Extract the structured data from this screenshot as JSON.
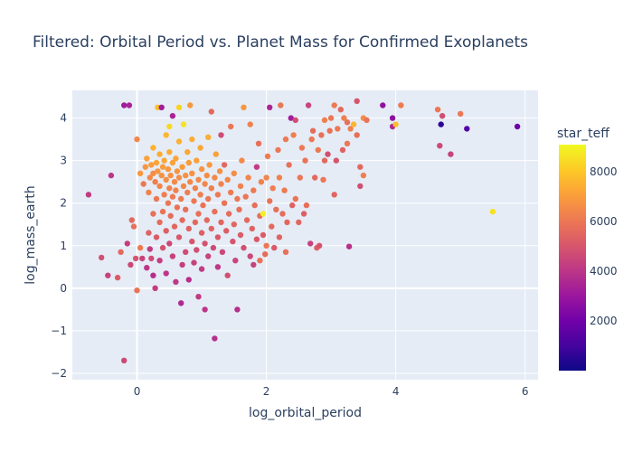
{
  "chart_data": {
    "type": "scatter",
    "title": "Filtered: Orbital Period vs. Planet Mass for Confirmed Exoplanets",
    "xlabel": "log_orbital_period",
    "ylabel": "log_mass_earth",
    "xlim": [
      -1.0,
      6.2
    ],
    "ylim": [
      -2.15,
      4.65
    ],
    "xticks": [
      "0",
      "2",
      "4",
      "6"
    ],
    "xtick_values": [
      0,
      2,
      4,
      6
    ],
    "yticks": [
      "−2",
      "−1",
      "0",
      "1",
      "2",
      "3",
      "4"
    ],
    "ytick_values": [
      -2,
      -1,
      0,
      1,
      2,
      3,
      4
    ],
    "grid": true,
    "colorbar": {
      "title": "star_teff",
      "range": [
        0,
        9100
      ],
      "ticks": [
        "2000",
        "4000",
        "6000",
        "8000"
      ],
      "tick_values": [
        2000,
        4000,
        6000,
        8000
      ],
      "colorscale": [
        "#0d0887",
        "#46039f",
        "#7201a8",
        "#9c179e",
        "#bd3786",
        "#d8576b",
        "#ed7953",
        "#fb9f3a",
        "#fdca26",
        "#f0f921"
      ]
    },
    "points": [
      [
        -0.75,
        2.2,
        4200
      ],
      [
        -0.55,
        0.72,
        4800
      ],
      [
        -0.45,
        0.3,
        4400
      ],
      [
        -0.4,
        2.65,
        4000
      ],
      [
        -0.3,
        0.25,
        5200
      ],
      [
        -0.25,
        0.85,
        5600
      ],
      [
        -0.2,
        4.3,
        3200
      ],
      [
        -0.12,
        4.3,
        3400
      ],
      [
        -0.15,
        1.05,
        4300
      ],
      [
        -0.1,
        0.55,
        4600
      ],
      [
        -0.08,
        1.6,
        5600
      ],
      [
        -0.05,
        1.45,
        5800
      ],
      [
        -0.02,
        0.7,
        5000
      ],
      [
        0.0,
        -0.05,
        5900
      ],
      [
        0.0,
        3.5,
        6500
      ],
      [
        0.05,
        2.7,
        6900
      ],
      [
        0.05,
        0.95,
        6100
      ],
      [
        0.08,
        0.7,
        4400
      ],
      [
        0.1,
        2.45,
        6000
      ],
      [
        -0.2,
        -1.7,
        4600
      ],
      [
        0.13,
        2.85,
        6800
      ],
      [
        0.15,
        3.05,
        7100
      ],
      [
        0.15,
        0.48,
        4000
      ],
      [
        0.18,
        2.25,
        6300
      ],
      [
        0.18,
        1.3,
        5400
      ],
      [
        0.2,
        2.6,
        6500
      ],
      [
        0.2,
        0.92,
        4200
      ],
      [
        0.22,
        2.9,
        7000
      ],
      [
        0.22,
        0.7,
        4700
      ],
      [
        0.25,
        2.7,
        6600
      ],
      [
        0.25,
        3.3,
        7500
      ],
      [
        0.25,
        1.75,
        5800
      ],
      [
        0.25,
        0.3,
        3800
      ],
      [
        0.28,
        2.5,
        6200
      ],
      [
        0.28,
        0.0,
        4200
      ],
      [
        0.3,
        2.95,
        7200
      ],
      [
        0.3,
        2.1,
        6000
      ],
      [
        0.3,
        1.2,
        5200
      ],
      [
        0.32,
        2.75,
        6800
      ],
      [
        0.32,
        4.25,
        7800
      ],
      [
        0.35,
        3.15,
        7400
      ],
      [
        0.35,
        2.4,
        6400
      ],
      [
        0.35,
        1.55,
        5700
      ],
      [
        0.35,
        0.65,
        4300
      ],
      [
        0.38,
        2.65,
        6700
      ],
      [
        0.38,
        4.25,
        3200
      ],
      [
        0.4,
        2.85,
        7000
      ],
      [
        0.4,
        1.8,
        5900
      ],
      [
        0.4,
        0.95,
        4900
      ],
      [
        0.42,
        3.0,
        7300
      ],
      [
        0.42,
        2.2,
        6200
      ],
      [
        0.45,
        3.6,
        7600
      ],
      [
        0.45,
        2.55,
        6600
      ],
      [
        0.45,
        1.35,
        5300
      ],
      [
        0.45,
        0.35,
        4000
      ],
      [
        0.48,
        2.8,
        6900
      ],
      [
        0.48,
        2.0,
        6000
      ],
      [
        0.5,
        3.2,
        7400
      ],
      [
        0.5,
        2.35,
        6300
      ],
      [
        0.5,
        1.05,
        4600
      ],
      [
        0.5,
        3.8,
        8400
      ],
      [
        0.52,
        2.65,
        6700
      ],
      [
        0.52,
        1.7,
        5700
      ],
      [
        0.55,
        2.95,
        7100
      ],
      [
        0.55,
        2.15,
        6100
      ],
      [
        0.55,
        0.75,
        4400
      ],
      [
        0.55,
        4.05,
        3400
      ],
      [
        0.58,
        2.5,
        6500
      ],
      [
        0.58,
        1.45,
        5500
      ],
      [
        0.6,
        3.05,
        7200
      ],
      [
        0.6,
        2.3,
        6300
      ],
      [
        0.6,
        0.15,
        4100
      ],
      [
        0.62,
        2.75,
        6800
      ],
      [
        0.62,
        1.9,
        5900
      ],
      [
        0.65,
        4.25,
        8300
      ],
      [
        0.65,
        2.6,
        6600
      ],
      [
        0.65,
        1.2,
        5100
      ],
      [
        0.65,
        3.45,
        7500
      ],
      [
        0.68,
        2.1,
        6100
      ],
      [
        0.68,
        -0.35,
        3600
      ],
      [
        0.7,
        2.85,
        7000
      ],
      [
        0.7,
        1.6,
        5600
      ],
      [
        0.7,
        0.55,
        4300
      ],
      [
        0.72,
        2.4,
        6400
      ],
      [
        0.72,
        3.85,
        8600
      ],
      [
        0.75,
        2.65,
        6700
      ],
      [
        0.75,
        1.85,
        5800
      ],
      [
        0.75,
        0.85,
        4700
      ],
      [
        0.78,
        3.2,
        7300
      ],
      [
        0.78,
        2.25,
        6200
      ],
      [
        0.8,
        2.95,
        7000
      ],
      [
        0.8,
        1.4,
        5400
      ],
      [
        0.8,
        0.2,
        3800
      ],
      [
        0.82,
        2.5,
        6500
      ],
      [
        0.82,
        4.3,
        6900
      ],
      [
        0.85,
        2.7,
        6700
      ],
      [
        0.85,
        1.1,
        5000
      ],
      [
        0.85,
        3.5,
        7400
      ],
      [
        0.88,
        2.05,
        6000
      ],
      [
        0.88,
        0.6,
        4400
      ],
      [
        0.9,
        2.35,
        6300
      ],
      [
        0.9,
        1.55,
        5600
      ],
      [
        0.92,
        3.0,
        7100
      ],
      [
        0.92,
        0.9,
        4800
      ],
      [
        0.95,
        2.55,
        6500
      ],
      [
        0.95,
        1.75,
        5800
      ],
      [
        0.95,
        -0.2,
        4200
      ],
      [
        0.98,
        2.2,
        6200
      ],
      [
        0.98,
        3.3,
        7300
      ],
      [
        1.0,
        2.8,
        6800
      ],
      [
        1.0,
        1.3,
        5300
      ],
      [
        1.0,
        0.45,
        4200
      ],
      [
        1.02,
        1.95,
        5900
      ],
      [
        1.05,
        2.45,
        6400
      ],
      [
        1.05,
        1.05,
        4900
      ],
      [
        1.05,
        -0.5,
        4000
      ],
      [
        1.08,
        2.65,
        6600
      ],
      [
        1.08,
        1.6,
        5600
      ],
      [
        1.1,
        3.55,
        7400
      ],
      [
        1.1,
        2.1,
        6000
      ],
      [
        1.1,
        0.75,
        4500
      ],
      [
        1.12,
        2.9,
        6900
      ],
      [
        1.15,
        1.4,
        5400
      ],
      [
        1.15,
        4.15,
        5600
      ],
      [
        1.15,
        2.35,
        6200
      ],
      [
        1.18,
        0.95,
        4700
      ],
      [
        1.2,
        2.6,
        6500
      ],
      [
        1.2,
        1.8,
        5800
      ],
      [
        1.2,
        -1.18,
        3800
      ],
      [
        1.22,
        3.15,
        7100
      ],
      [
        1.25,
        2.2,
        6100
      ],
      [
        1.25,
        1.2,
        5100
      ],
      [
        1.25,
        0.5,
        4100
      ],
      [
        1.28,
        2.75,
        6700
      ],
      [
        1.3,
        1.55,
        5500
      ],
      [
        1.3,
        3.6,
        4700
      ],
      [
        1.3,
        2.45,
        6300
      ],
      [
        1.32,
        0.85,
        4600
      ],
      [
        1.35,
        2.0,
        5900
      ],
      [
        1.35,
        2.9,
        5600
      ],
      [
        1.38,
        1.35,
        5300
      ],
      [
        1.4,
        2.55,
        6400
      ],
      [
        1.4,
        0.3,
        4800
      ],
      [
        1.42,
        1.75,
        5700
      ],
      [
        1.45,
        2.25,
        6100
      ],
      [
        1.45,
        3.8,
        6000
      ],
      [
        1.48,
        1.1,
        5000
      ],
      [
        1.5,
        2.7,
        6600
      ],
      [
        1.5,
        1.5,
        5500
      ],
      [
        1.52,
        0.65,
        4500
      ],
      [
        1.55,
        2.1,
        6000
      ],
      [
        1.55,
        -0.5,
        3800
      ],
      [
        1.58,
        1.85,
        5800
      ],
      [
        1.6,
        2.4,
        6300
      ],
      [
        1.6,
        1.25,
        5200
      ],
      [
        1.62,
        3.0,
        6500
      ],
      [
        1.65,
        0.95,
        4800
      ],
      [
        1.65,
        4.25,
        6800
      ],
      [
        1.68,
        2.15,
        6000
      ],
      [
        1.7,
        1.6,
        5600
      ],
      [
        1.72,
        2.6,
        6400
      ],
      [
        1.75,
        0.75,
        4600
      ],
      [
        1.75,
        3.85,
        6300
      ],
      [
        1.78,
        1.4,
        5400
      ],
      [
        1.8,
        2.3,
        6100
      ],
      [
        1.8,
        0.55,
        4400
      ],
      [
        1.82,
        1.95,
        5800
      ],
      [
        1.85,
        2.85,
        4200
      ],
      [
        1.85,
        1.15,
        5100
      ],
      [
        1.88,
        3.4,
        5800
      ],
      [
        1.9,
        1.7,
        5700
      ],
      [
        1.9,
        0.65,
        5900
      ],
      [
        1.92,
        2.5,
        6300
      ],
      [
        1.95,
        1.75,
        8900
      ],
      [
        1.95,
        1.25,
        5200
      ],
      [
        1.98,
        0.8,
        5700
      ],
      [
        2.0,
        2.6,
        6400
      ],
      [
        2.0,
        1.0,
        6000
      ],
      [
        2.02,
        3.1,
        6100
      ],
      [
        2.05,
        2.05,
        5900
      ],
      [
        2.05,
        4.25,
        3500
      ],
      [
        2.08,
        1.45,
        5600
      ],
      [
        2.1,
        2.35,
        6200
      ],
      [
        2.12,
        0.95,
        5100
      ],
      [
        2.15,
        1.85,
        5800
      ],
      [
        2.18,
        3.25,
        6000
      ],
      [
        2.2,
        2.6,
        6300
      ],
      [
        2.2,
        1.2,
        5400
      ],
      [
        2.22,
        4.3,
        6000
      ],
      [
        2.25,
        1.75,
        5700
      ],
      [
        2.28,
        2.3,
        6100
      ],
      [
        2.3,
        0.85,
        5800
      ],
      [
        2.3,
        3.5,
        6100
      ],
      [
        2.32,
        1.55,
        5500
      ],
      [
        2.35,
        2.9,
        5800
      ],
      [
        2.38,
        4.0,
        3200
      ],
      [
        2.4,
        1.95,
        5400
      ],
      [
        2.42,
        3.6,
        6200
      ],
      [
        2.45,
        3.95,
        4800
      ],
      [
        2.45,
        2.1,
        5900
      ],
      [
        2.5,
        1.55,
        5500
      ],
      [
        2.52,
        2.6,
        6000
      ],
      [
        2.55,
        3.3,
        6100
      ],
      [
        2.58,
        1.75,
        5300
      ],
      [
        2.6,
        3.0,
        5900
      ],
      [
        2.62,
        1.95,
        5800
      ],
      [
        2.65,
        4.3,
        4500
      ],
      [
        2.68,
        1.05,
        4400
      ],
      [
        2.7,
        3.5,
        6000
      ],
      [
        2.72,
        3.7,
        5700
      ],
      [
        2.75,
        2.6,
        5600
      ],
      [
        2.78,
        0.95,
        5300
      ],
      [
        2.8,
        3.25,
        6100
      ],
      [
        2.82,
        1.0,
        5000
      ],
      [
        2.85,
        3.6,
        5800
      ],
      [
        2.88,
        2.55,
        6000
      ],
      [
        2.9,
        3.0,
        5600
      ],
      [
        2.9,
        3.95,
        6200
      ],
      [
        2.95,
        3.15,
        4800
      ],
      [
        2.98,
        3.7,
        5900
      ],
      [
        3.0,
        4.0,
        6000
      ],
      [
        3.05,
        2.2,
        5500
      ],
      [
        3.05,
        4.3,
        6100
      ],
      [
        3.08,
        3.0,
        5000
      ],
      [
        3.1,
        3.75,
        6000
      ],
      [
        3.15,
        4.2,
        5600
      ],
      [
        3.18,
        3.25,
        5400
      ],
      [
        3.2,
        4.0,
        6200
      ],
      [
        3.25,
        3.9,
        5800
      ],
      [
        3.25,
        3.4,
        6000
      ],
      [
        3.28,
        0.98,
        3900
      ],
      [
        3.3,
        3.75,
        6300
      ],
      [
        3.35,
        3.85,
        7600
      ],
      [
        3.4,
        3.6,
        5800
      ],
      [
        3.4,
        4.4,
        5000
      ],
      [
        3.45,
        2.85,
        5600
      ],
      [
        3.45,
        2.4,
        4800
      ],
      [
        3.5,
        2.65,
        6200
      ],
      [
        3.5,
        4.0,
        6600
      ],
      [
        3.55,
        3.95,
        5900
      ],
      [
        3.8,
        4.3,
        2800
      ],
      [
        3.95,
        3.8,
        3600
      ],
      [
        3.95,
        4.0,
        2700
      ],
      [
        4.0,
        3.85,
        7800
      ],
      [
        4.08,
        4.3,
        6100
      ],
      [
        4.65,
        4.2,
        6000
      ],
      [
        4.68,
        3.35,
        4600
      ],
      [
        4.7,
        3.85,
        600
      ],
      [
        4.72,
        4.05,
        4800
      ],
      [
        4.85,
        3.15,
        4400
      ],
      [
        5.0,
        4.1,
        6000
      ],
      [
        5.1,
        3.75,
        1300
      ],
      [
        5.5,
        1.8,
        8600
      ],
      [
        5.88,
        3.8,
        1900
      ]
    ]
  }
}
